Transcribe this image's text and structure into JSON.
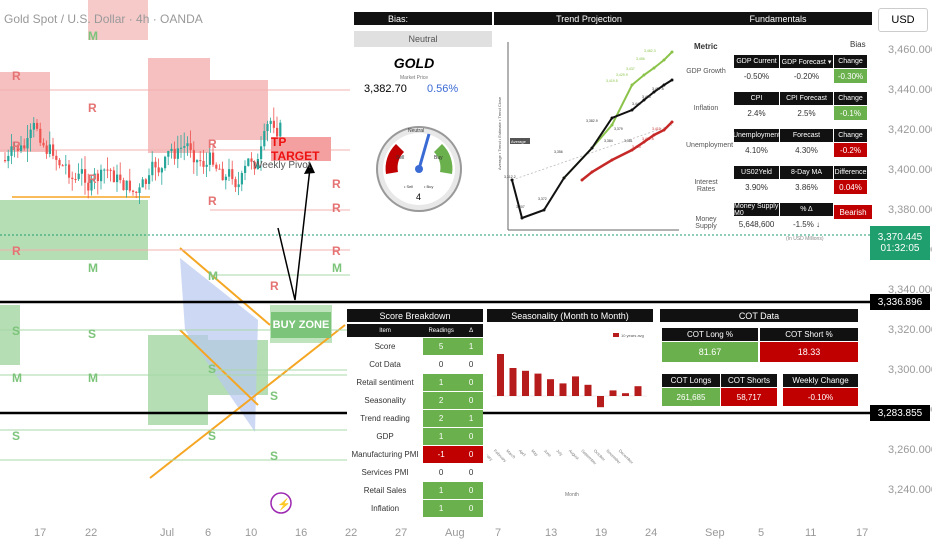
{
  "symbol_title": "Gold Spot / U.S. Dollar · 4h · OANDA",
  "currency": "USD",
  "price_axis": [
    "3,460.000",
    "3,440.000",
    "3,420.000",
    "3,400.000",
    "3,380.000",
    "3,360.000",
    "3,340.000",
    "3,320.000",
    "3,300.000",
    "3,280.000",
    "3,260.000",
    "3,240.000"
  ],
  "time_axis": [
    "17",
    "22",
    "Jul",
    "6",
    "10",
    "16",
    "22",
    "27",
    "Aug",
    "7",
    "13",
    "19",
    "24",
    "Sep",
    "5",
    "11",
    "17"
  ],
  "current_price": {
    "value": "3,370.445",
    "countdown": "01:32:05"
  },
  "level_top": "3,336.896",
  "level_bottom": "3,283.855",
  "annotations": {
    "tp_target": "TP TARGET",
    "weekly_pivot": "Weekly Pivot",
    "buy_zone": "BUY ZONE"
  },
  "pivot_letters": {
    "r": "R",
    "m": "M",
    "s": "S"
  },
  "bias_panel": {
    "header": "Bias:",
    "value": "Neutral",
    "asset": "GOLD",
    "market_price_label": "Market Price",
    "price": "3,382.70",
    "change": "0.56%",
    "gauge": {
      "neutral": "Neutral",
      "sell": "Sell",
      "buy": "Buy",
      "s_sell": "• Sell",
      "s_buy": "• Buy",
      "score": "4"
    }
  },
  "trend_panel": {
    "header": "Trend Projection",
    "ylabel": "Average • Trend • Estimate • Trend Close",
    "average_label": "Average",
    "point_labels": [
      "3,312.2",
      "3,307",
      "3,372",
      "3,356",
      "3,382.9",
      "3,384",
      "3,379",
      "3,381",
      "3,419.5",
      "3,429.9",
      "3,437",
      "3,456",
      "3,462.3",
      "3,440",
      "3,455",
      "3,457.5",
      "3,422.5",
      "3,403",
      "3,410"
    ]
  },
  "fundamentals": {
    "header": "Fundamentals",
    "metric_label": "Metric",
    "bias_label": "Bias",
    "rows": [
      {
        "metric": "GDP Growth",
        "h": [
          "GDP Current",
          "GDP Forecast ▾",
          "Change"
        ],
        "v": [
          "-0.50%",
          "-0.20%",
          "-0.30%"
        ],
        "bias": "green"
      },
      {
        "metric": "Inflation",
        "h": [
          "CPI",
          "CPI Forecast",
          "Change"
        ],
        "v": [
          "2.4%",
          "2.5%",
          "-0.1%"
        ],
        "bias": "green"
      },
      {
        "metric": "Unemployment",
        "h": [
          "Unemployment",
          "Forecast",
          "Change"
        ],
        "v": [
          "4.10%",
          "4.30%",
          "-0.2%"
        ],
        "bias": "red"
      },
      {
        "metric": "Interest Rates",
        "h": [
          "US02Yeld",
          "8-Day MA",
          "Difference"
        ],
        "v": [
          "3.90%",
          "3.86%",
          "0.04%"
        ],
        "bias": "red"
      },
      {
        "metric": "Money Supply",
        "h": [
          "Money Supply M0",
          "% Δ",
          ""
        ],
        "v": [
          "5,648,600",
          "-1.5% ↓",
          ""
        ],
        "bias_text": "Bearish"
      }
    ],
    "footnote": "(In USD Millions)"
  },
  "score_breakdown": {
    "header": "Score Breakdown",
    "cols": [
      "Item",
      "Readings",
      "Δ"
    ],
    "rows": [
      {
        "item": "Score",
        "reading": "5",
        "delta": "1",
        "rc": "green",
        "dc": "green"
      },
      {
        "item": "Cot Data",
        "reading": "0",
        "delta": "0",
        "rc": "none",
        "dc": "none"
      },
      {
        "item": "Retail sentiment",
        "reading": "1",
        "delta": "0",
        "rc": "green",
        "dc": "green"
      },
      {
        "item": "Seasonality",
        "reading": "2",
        "delta": "0",
        "rc": "green",
        "dc": "green"
      },
      {
        "item": "Trend reading",
        "reading": "2",
        "delta": "1",
        "rc": "green",
        "dc": "green"
      },
      {
        "item": "GDP",
        "reading": "1",
        "delta": "0",
        "rc": "green",
        "dc": "green"
      },
      {
        "item": "Manufacturing PMI",
        "reading": "-1",
        "delta": "0",
        "rc": "red",
        "dc": "red"
      },
      {
        "item": "Services PMI",
        "reading": "0",
        "delta": "0",
        "rc": "none",
        "dc": "none"
      },
      {
        "item": "Retail Sales",
        "reading": "1",
        "delta": "0",
        "rc": "green",
        "dc": "green"
      },
      {
        "item": "Inflation",
        "reading": "1",
        "delta": "0",
        "rc": "green",
        "dc": "green"
      }
    ]
  },
  "seasonality": {
    "header": "Seasonality (Month to Month)",
    "legend": "10 years avg",
    "xlabel": "Month",
    "months": [
      "January",
      "February",
      "March",
      "April",
      "May",
      "June",
      "July",
      "August",
      "September",
      "October",
      "November",
      "December"
    ]
  },
  "cot": {
    "header": "COT Data",
    "long_pct_label": "COT Long %",
    "short_pct_label": "COT Short %",
    "long_pct": "81.67",
    "short_pct": "18.33",
    "longs_label": "COT Longs",
    "shorts_label": "COT Shorts",
    "weekly_label": "Weekly Change",
    "longs": "261,685",
    "shorts": "58,717",
    "weekly": "-0.10%"
  },
  "colors": {
    "green": "#6ab04c",
    "red": "#c00000",
    "header": "#111111",
    "buy_green": "#7cc47a"
  },
  "chart_data": {
    "type": "bar",
    "title": "Seasonality (Month to Month)",
    "categories": [
      "January",
      "February",
      "March",
      "April",
      "May",
      "June",
      "July",
      "August",
      "September",
      "October",
      "November",
      "December"
    ],
    "series": [
      {
        "name": "10 years avg",
        "values": [
          1.5,
          1.0,
          0.9,
          0.8,
          0.6,
          0.45,
          0.7,
          0.4,
          -0.4,
          0.2,
          0.1,
          0.35
        ]
      }
    ],
    "xlabel": "Month",
    "ylabel": ""
  }
}
